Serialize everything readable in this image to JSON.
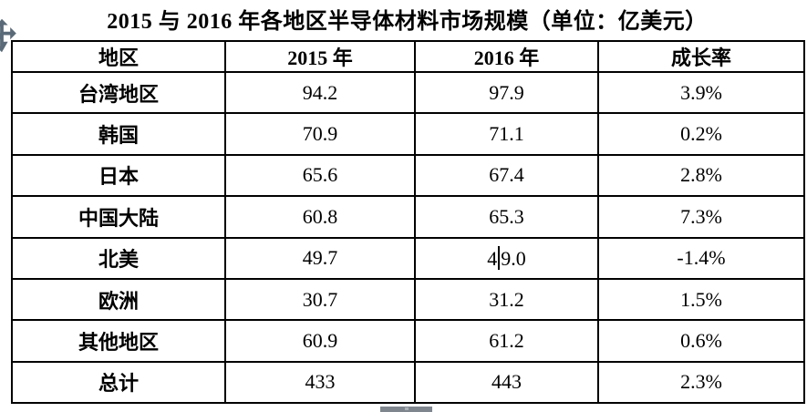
{
  "page": {
    "title": "2015 与 2016 年各地区半导体材料市场规模（单位：亿美元）"
  },
  "table": {
    "headers": [
      "地区",
      "2015 年",
      "2016 年",
      "成长率"
    ],
    "rows": [
      {
        "region": "台湾地区",
        "y2015": "94.2",
        "y2016": "97.9",
        "growth": "3.9%"
      },
      {
        "region": "韩国",
        "y2015": "70.9",
        "y2016": "71.1",
        "growth": "0.2%"
      },
      {
        "region": "日本",
        "y2015": "65.6",
        "y2016": "67.4",
        "growth": "2.8%"
      },
      {
        "region": "中国大陆",
        "y2015": "60.8",
        "y2016": "65.3",
        "growth": "7.3%"
      },
      {
        "region": "北美",
        "y2015": "49.7",
        "y2016": "49.0",
        "growth": "-1.4%"
      },
      {
        "region": "欧洲",
        "y2015": "30.7",
        "y2016": "31.2",
        "growth": "1.5%"
      },
      {
        "region": "其他地区",
        "y2015": "60.9",
        "y2016": "61.2",
        "growth": "0.6%"
      },
      {
        "region": "总计",
        "y2015": "433",
        "y2016": "443",
        "growth": "2.3%"
      }
    ]
  },
  "cursor": {
    "row_region": "北美",
    "column": "2016 年",
    "text_before_caret": "4",
    "text_after_caret": "9.0"
  },
  "icons": {
    "table_move_handle": "move-arrows-icon"
  },
  "colors": {
    "text": "#000000",
    "border": "#000000",
    "background": "#ffffff",
    "move_handle": "#5a6a78",
    "scrollbar_thumb": "#7f868e"
  }
}
